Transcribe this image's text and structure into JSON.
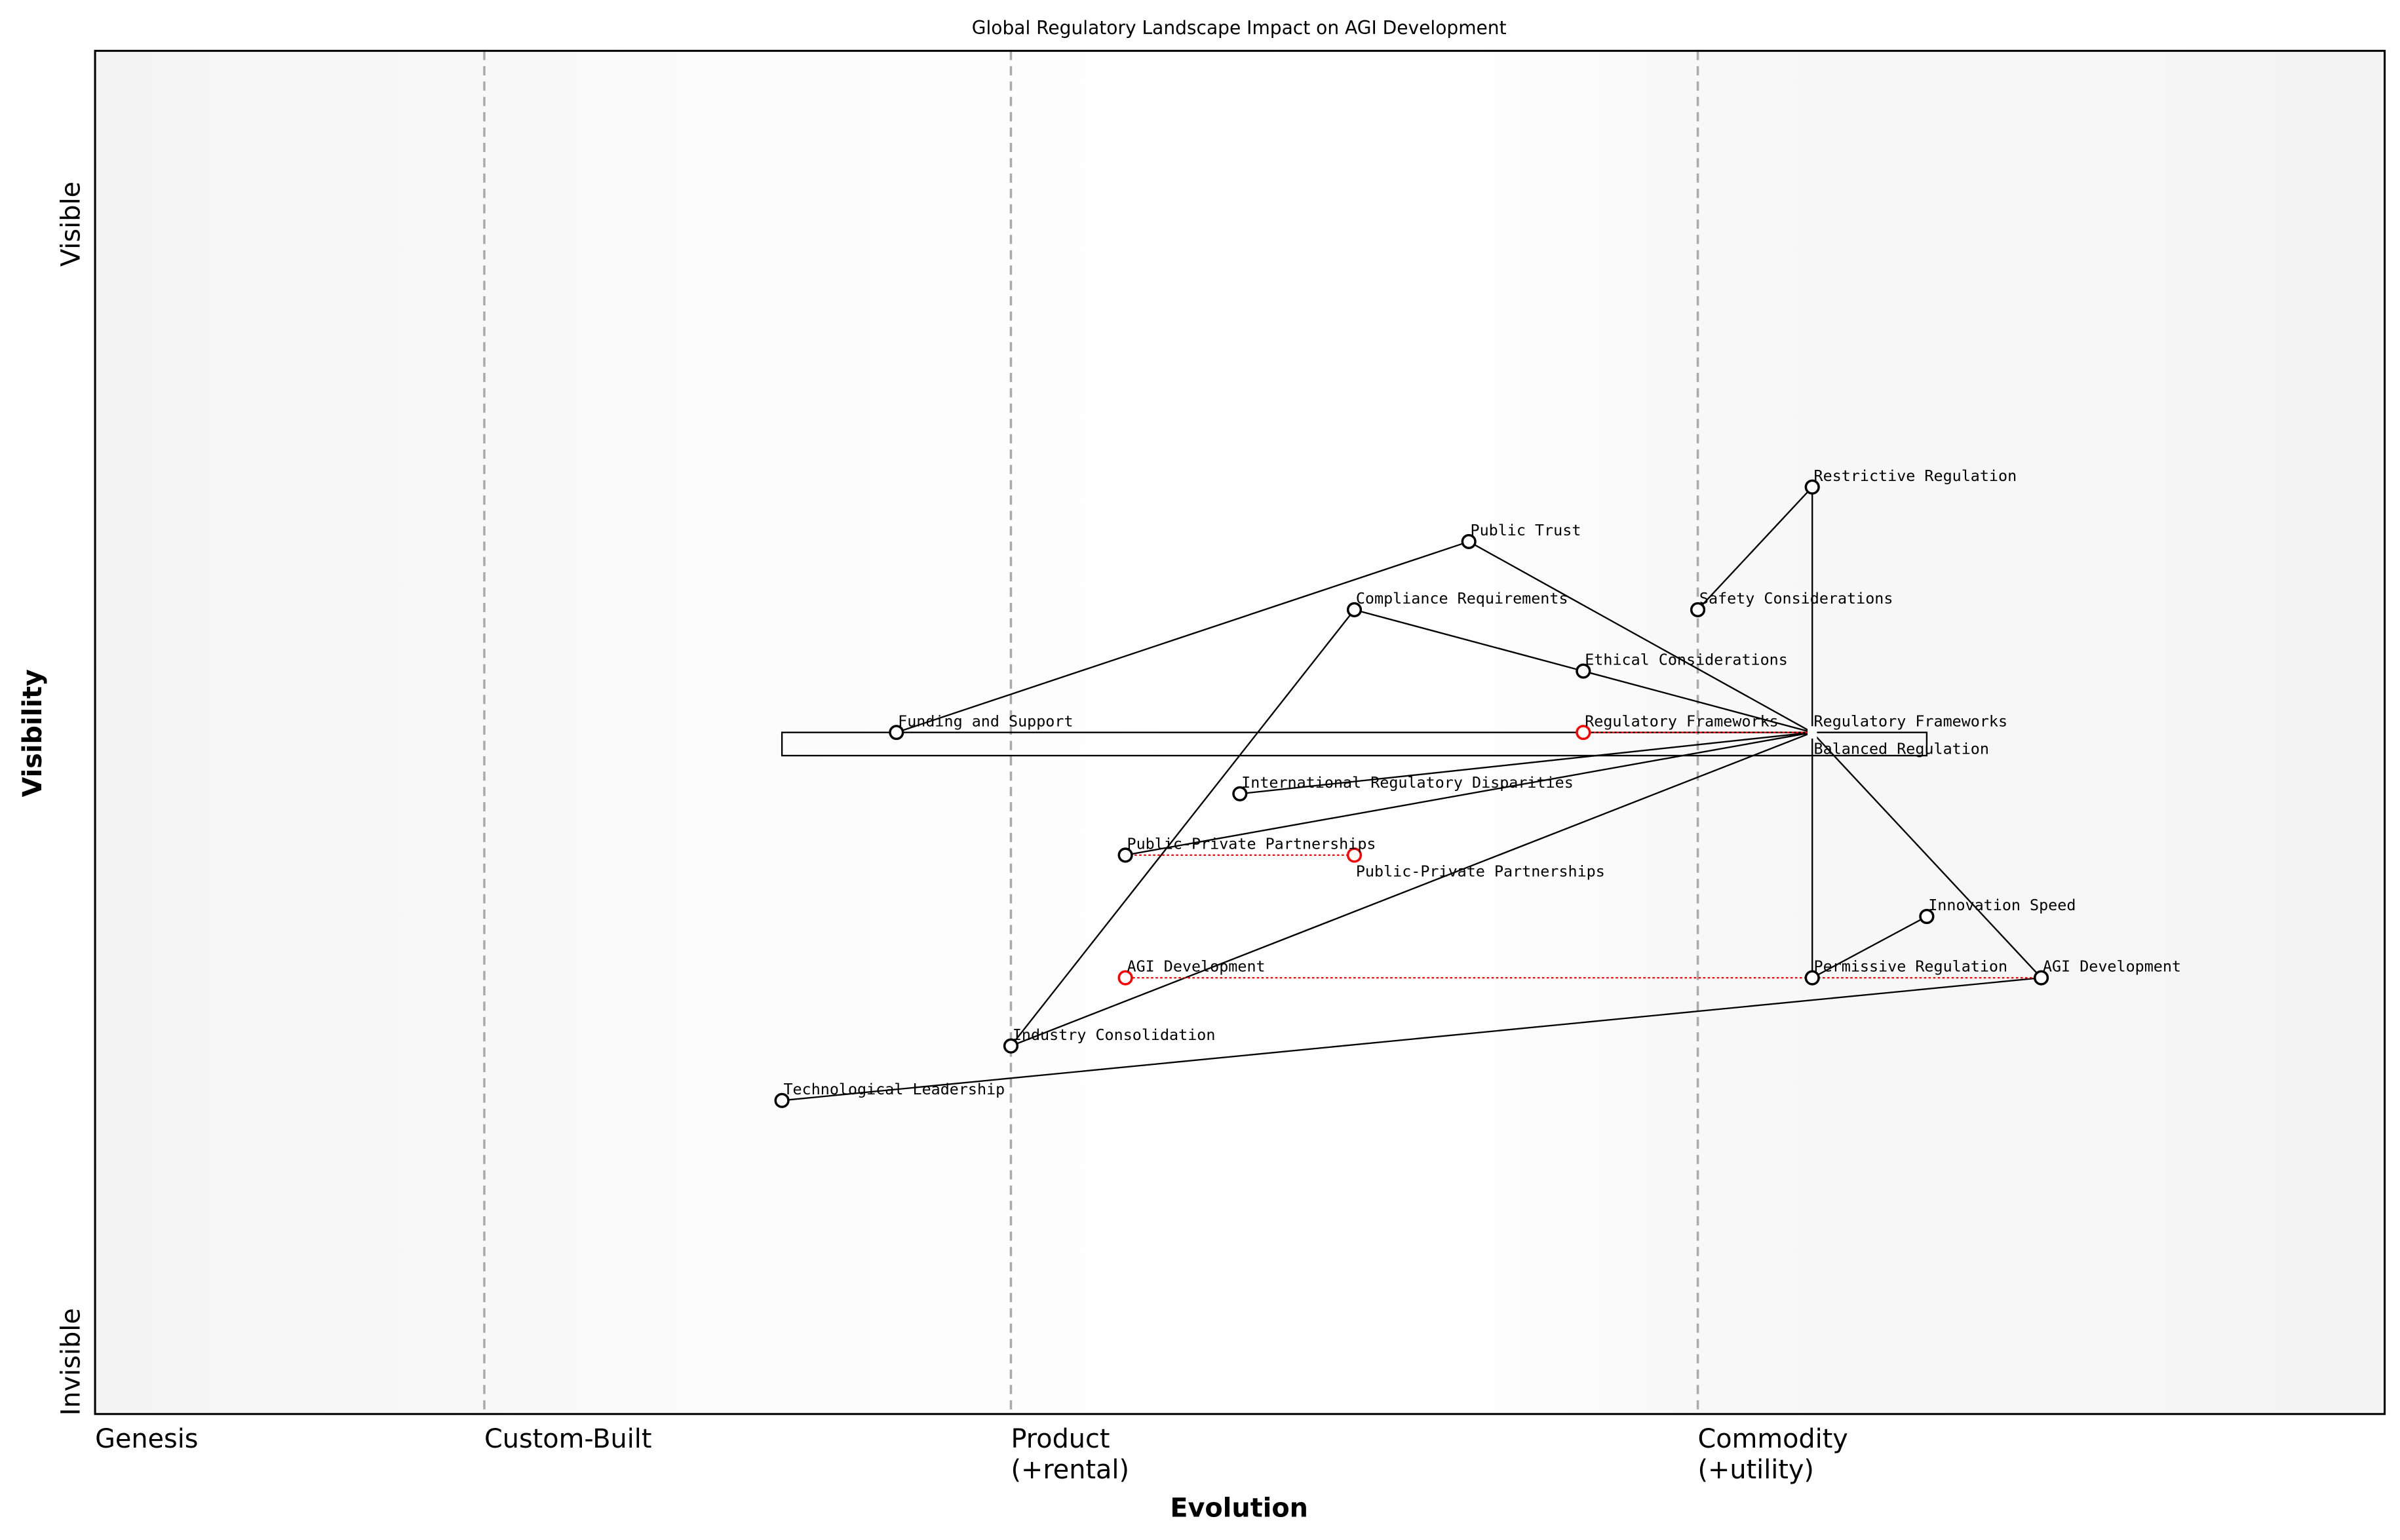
{
  "chart_data": {
    "type": "scatter",
    "subtype": "wardley-map",
    "title": "Global Regulatory Landscape Impact on AGI Development",
    "xlabel": "Evolution",
    "ylabel": "Visibility",
    "xlim": [
      0,
      1
    ],
    "ylim": [
      0,
      1
    ],
    "grid": false,
    "x_stages": [
      {
        "label": "Genesis",
        "x": 0.0
      },
      {
        "label": "Custom-Built",
        "x": 0.17
      },
      {
        "label": "Product",
        "sub": "(+rental)",
        "x": 0.4
      },
      {
        "label": "Commodity",
        "sub": "(+utility)",
        "x": 0.7
      }
    ],
    "y_labels": {
      "top": "Visible",
      "bottom": "Invisible"
    },
    "components": [
      {
        "name": "Restrictive Regulation",
        "evolution": 0.75,
        "visibility": 0.68
      },
      {
        "name": "Public Trust",
        "evolution": 0.6,
        "visibility": 0.64
      },
      {
        "name": "Safety Considerations",
        "evolution": 0.7,
        "visibility": 0.59
      },
      {
        "name": "Compliance Requirements",
        "evolution": 0.55,
        "visibility": 0.59
      },
      {
        "name": "Ethical Considerations",
        "evolution": 0.65,
        "visibility": 0.545
      },
      {
        "name": "Funding and Support",
        "evolution": 0.35,
        "visibility": 0.5
      },
      {
        "name": "Regulatory Frameworks",
        "evolution": 0.75,
        "visibility": 0.5,
        "hidden_marker": true
      },
      {
        "name": "Balanced Regulation",
        "evolution": 0.75,
        "visibility": 0.5,
        "hidden_marker": true
      },
      {
        "name": "International Regulatory Disparities",
        "evolution": 0.5,
        "visibility": 0.455
      },
      {
        "name": "Public-Private Partnerships",
        "evolution": 0.45,
        "visibility": 0.41
      },
      {
        "name": "Innovation Speed",
        "evolution": 0.8,
        "visibility": 0.365
      },
      {
        "name": "Permissive Regulation",
        "evolution": 0.75,
        "visibility": 0.32
      },
      {
        "name": "AGI Development",
        "evolution": 0.85,
        "visibility": 0.32
      },
      {
        "name": "Industry Consolidation",
        "evolution": 0.4,
        "visibility": 0.27
      },
      {
        "name": "Technological Leadership",
        "evolution": 0.3,
        "visibility": 0.23
      }
    ],
    "evolved": [
      {
        "name": "Regulatory Frameworks",
        "from": 0.75,
        "to": 0.65,
        "visibility": 0.5
      },
      {
        "name": "Public-Private Partnerships",
        "from": 0.45,
        "to": 0.55,
        "visibility": 0.41
      },
      {
        "name": "AGI Development",
        "from": 0.85,
        "to": 0.45,
        "visibility": 0.32
      }
    ],
    "pipeline": {
      "visibility_top": 0.5,
      "visibility_bottom": 0.483,
      "from": 0.3,
      "to": 0.8
    },
    "links": [
      [
        "Funding and Support",
        "Public Trust"
      ],
      [
        "Public Trust",
        "Regulatory Frameworks"
      ],
      [
        "Compliance Requirements",
        "Ethical Considerations"
      ],
      [
        "Ethical Considerations",
        "Regulatory Frameworks"
      ],
      [
        "Compliance Requirements",
        "Industry Consolidation"
      ],
      [
        "Industry Consolidation",
        "Regulatory Frameworks"
      ],
      [
        "Safety Considerations",
        "Restrictive Regulation"
      ],
      [
        "Restrictive Regulation",
        "Regulatory Frameworks"
      ],
      [
        "Regulatory Frameworks",
        "Permissive Regulation"
      ],
      [
        "International Regulatory Disparities",
        "Regulatory Frameworks"
      ],
      [
        "Public-Private Partnerships",
        "Regulatory Frameworks"
      ],
      [
        "Regulatory Frameworks",
        "AGI Development"
      ],
      [
        "Permissive Regulation",
        "Innovation Speed"
      ],
      [
        "AGI Development",
        "Technological Leadership"
      ]
    ],
    "colors": {
      "node": "#000000",
      "evolved": "#ff0000",
      "stage_line": "#aaaaaa",
      "edge_shade": "#f4f4f4"
    }
  }
}
